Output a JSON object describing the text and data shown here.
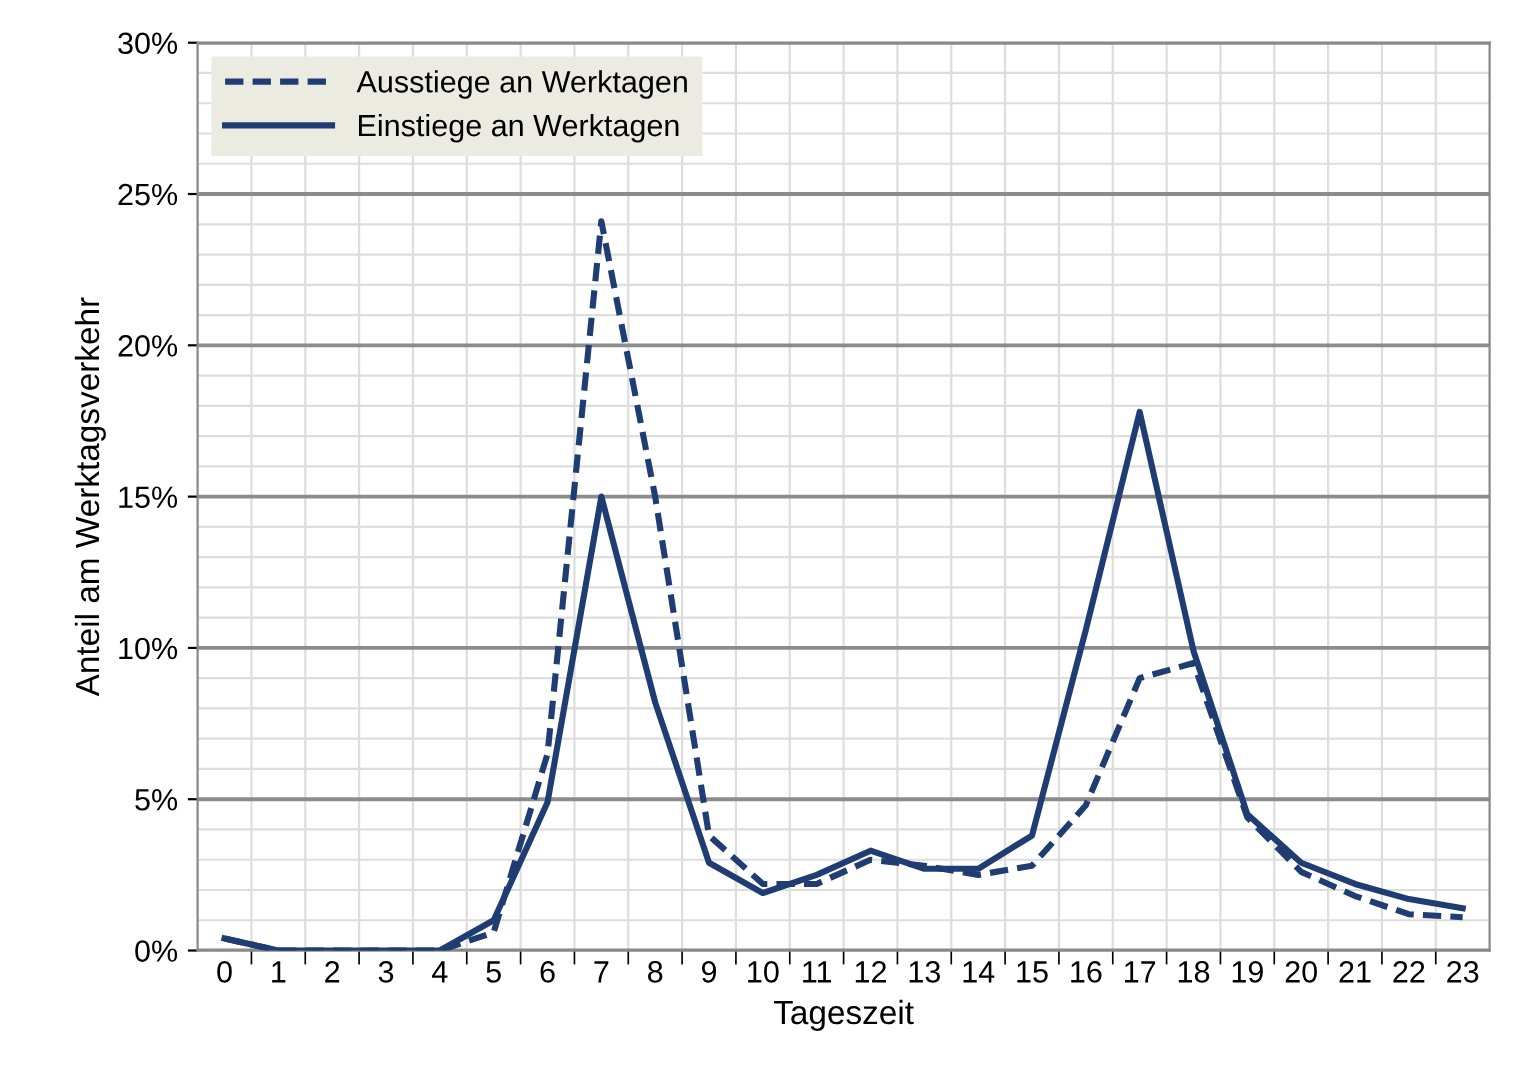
{
  "chart_data": {
    "type": "line",
    "xlabel": "Tageszeit",
    "ylabel": "Anteil am Werktagsverkehr",
    "categories": [
      "0",
      "1",
      "2",
      "3",
      "4",
      "5",
      "6",
      "7",
      "8",
      "9",
      "10",
      "11",
      "12",
      "13",
      "14",
      "15",
      "16",
      "17",
      "18",
      "19",
      "20",
      "21",
      "22",
      "23"
    ],
    "series": [
      {
        "name": "Ausstiege an Werktagen",
        "color": "#1f3d72",
        "line_style": "dashed",
        "values": [
          0.4,
          0,
          0,
          0,
          0,
          0.6,
          6.5,
          24.1,
          15,
          3.8,
          2.2,
          2.2,
          3.0,
          2.8,
          2.5,
          2.8,
          4.8,
          9.0,
          9.5,
          4.4,
          2.6,
          1.8,
          1.2,
          1.1
        ]
      },
      {
        "name": "Einstiege an Werktagen",
        "color": "#1f3d72",
        "line_style": "solid",
        "values": [
          0.4,
          0,
          0,
          0,
          0,
          1.0,
          4.9,
          15,
          8.2,
          2.9,
          1.9,
          2.5,
          3.3,
          2.7,
          2.7,
          3.8,
          10.6,
          17.8,
          9.9,
          4.5,
          2.9,
          2.2,
          1.7,
          1.4
        ]
      }
    ],
    "ylim": [
      0,
      30
    ],
    "yticks": [
      {
        "value": 0,
        "label": "0%"
      },
      {
        "value": 5,
        "label": "5%"
      },
      {
        "value": 10,
        "label": "10%"
      },
      {
        "value": 15,
        "label": "15%"
      },
      {
        "value": 20,
        "label": "20%"
      },
      {
        "value": 25,
        "label": "25%"
      },
      {
        "value": 30,
        "label": "30%"
      }
    ],
    "grid": true,
    "legend": "top left",
    "marker": "none"
  }
}
